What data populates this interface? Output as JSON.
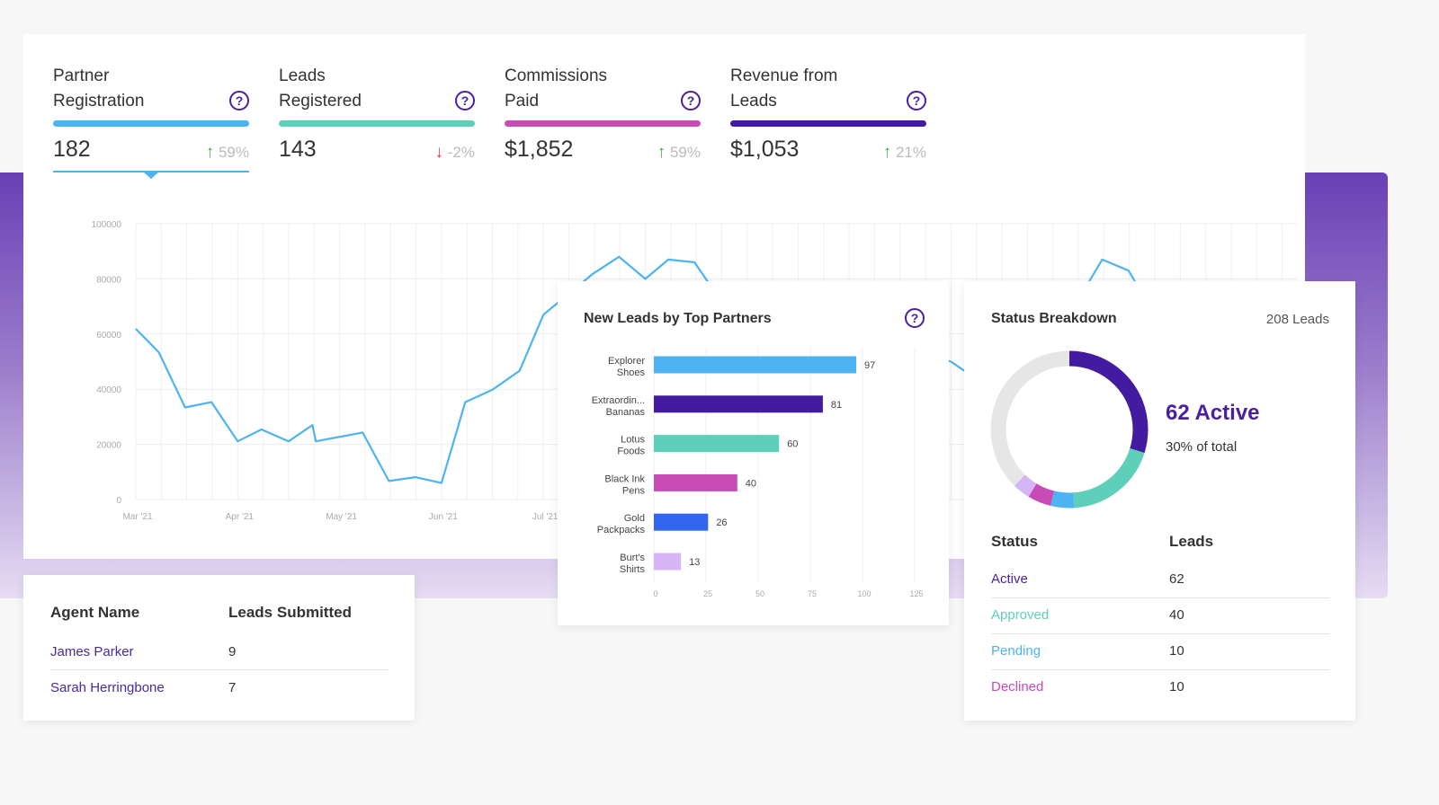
{
  "colors": {
    "blue": "#4db3f2",
    "teal": "#5ecfb9",
    "magenta": "#c94bb5",
    "indigo": "#431ba0",
    "royal": "#3366f0",
    "lavender": "#d5b5f5",
    "grey": "#e6e6e6",
    "up": "#3cb043",
    "down": "#e03b3b"
  },
  "kpis": [
    {
      "title_line1": "Partner",
      "title_line2": "Registration",
      "value": "182",
      "delta": "59%",
      "direction": "up",
      "color": "#4db3f2",
      "selected": true
    },
    {
      "title_line1": "Leads",
      "title_line2": "Registered",
      "value": "143",
      "delta": "-2%",
      "direction": "down",
      "color": "#5ecfb9",
      "selected": false
    },
    {
      "title_line1": "Commissions",
      "title_line2": "Paid",
      "value": "$1,852",
      "delta": "59%",
      "direction": "up",
      "color": "#c94bb5",
      "selected": false
    },
    {
      "title_line1": "Revenue from",
      "title_line2": "Leads",
      "value": "$1,053",
      "delta": "21%",
      "direction": "up",
      "color": "#431ba0",
      "selected": false
    }
  ],
  "chart_data": [
    {
      "type": "line",
      "ylim": [
        0,
        100000
      ],
      "yticks": [
        "0",
        "20000",
        "40000",
        "60000",
        "80000",
        "100000"
      ],
      "xticks": [
        "Mar '21",
        "Apr '21",
        "May '21",
        "Jun '21",
        "Jul '21"
      ],
      "grid": true,
      "color": "#4db3f2",
      "points": [
        [
          "2021-03-01",
          61900
        ],
        [
          "2021-03-08",
          53400
        ],
        [
          "2021-03-16",
          33400
        ],
        [
          "2021-03-24",
          35300
        ],
        [
          "2021-04-01",
          21100
        ],
        [
          "2021-04-08",
          25400
        ],
        [
          "2021-04-16",
          21100
        ],
        [
          "2021-04-23",
          27000
        ],
        [
          "2021-04-24",
          21100
        ],
        [
          "2021-05-08",
          24300
        ],
        [
          "2021-05-16",
          6700
        ],
        [
          "2021-05-24",
          8100
        ],
        [
          "2021-06-01",
          6000
        ],
        [
          "2021-06-08",
          35300
        ],
        [
          "2021-06-16",
          39800
        ],
        [
          "2021-06-24",
          46700
        ],
        [
          "2021-07-01",
          67000
        ],
        [
          "2021-07-16",
          81800
        ],
        [
          "2021-07-24",
          88000
        ],
        [
          "2021-08-01",
          80000
        ],
        [
          "2021-08-08",
          87000
        ],
        [
          "2021-08-16",
          86000
        ],
        [
          "2021-08-20",
          79000
        ],
        [
          "2021-11-01",
          50000
        ],
        [
          "2021-11-05",
          46600
        ],
        [
          "2021-12-12",
          79000
        ],
        [
          "2021-12-16",
          87000
        ],
        [
          "2021-12-24",
          83000
        ],
        [
          "2021-12-26",
          79000
        ]
      ]
    },
    {
      "type": "bar",
      "title": "New Leads by Top Partners",
      "orientation": "horizontal",
      "categories": [
        [
          "Explorer",
          "Shoes"
        ],
        [
          "Extraordin...",
          "Bananas"
        ],
        [
          "Lotus",
          "Foods"
        ],
        [
          "Black Ink",
          "Pens"
        ],
        [
          "Gold",
          "Packpacks"
        ],
        [
          "Burt's",
          "Shirts"
        ]
      ],
      "values": [
        97,
        81,
        60,
        40,
        26,
        13
      ],
      "value_labels": [
        "97",
        "81",
        "60",
        "40",
        "26",
        "13"
      ],
      "colors": [
        "#4db3f2",
        "#431ba0",
        "#5ecfb9",
        "#c94bb5",
        "#3366f0",
        "#d5b5f5"
      ],
      "xlim": [
        0,
        125
      ],
      "xticks": [
        "0",
        "25",
        "50",
        "75",
        "100",
        "125"
      ],
      "grid": true
    },
    {
      "type": "pie",
      "title": "Status Breakdown",
      "total_label": "208 Leads",
      "total": 208,
      "segments": [
        {
          "value": 62,
          "color": "#431ba0"
        },
        {
          "value": 40,
          "color": "#5ecfb9"
        },
        {
          "value": 10,
          "color": "#4db3f2"
        },
        {
          "value": 10,
          "color": "#c94bb5"
        },
        {
          "value": 7.5,
          "color": "#d5b5f5"
        }
      ],
      "remainder_color": "#e6e6e6",
      "highlight": "62 Active",
      "highlight_sub": "30% of total"
    }
  ],
  "help_icon": "question-circle-icon",
  "status_table": {
    "headers": [
      "Status",
      "Leads"
    ],
    "rows": [
      {
        "status": "Active",
        "leads": "62",
        "color": "#4a1fa0"
      },
      {
        "status": "Approved",
        "leads": "40",
        "color": "#5ecfb9"
      },
      {
        "status": "Pending",
        "leads": "10",
        "color": "#4db3f2"
      },
      {
        "status": "Declined",
        "leads": "10",
        "color": "#c94bb5"
      }
    ]
  },
  "agent_table": {
    "headers": [
      "Agent Name",
      "Leads Submitted"
    ],
    "rows": [
      {
        "name": "James Parker",
        "leads": "9"
      },
      {
        "name": "Sarah Herringbone",
        "leads": "7"
      }
    ]
  }
}
